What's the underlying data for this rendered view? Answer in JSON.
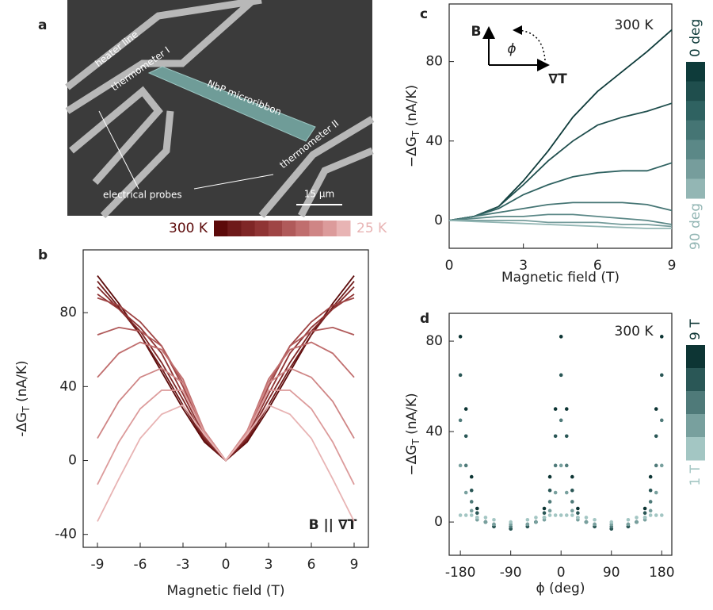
{
  "image_panel": {
    "panel_label": "a",
    "labels": [
      "heater line",
      "thermometer I",
      "NbP microribbon",
      "thermometer II",
      "electrical probes"
    ],
    "scale_bar": "15 μm"
  },
  "chart_data": [
    {
      "type": "line",
      "panel_label": "b",
      "xlabel": "Magnetic field (T)",
      "ylabel": [
        "-ΔG",
        "T",
        " (nA/K)"
      ],
      "annotation": "B || ∇T",
      "colorbar_labels": [
        "300 K",
        "25 K"
      ],
      "xlim": [
        -10,
        10
      ],
      "xticks": [
        -9,
        -6,
        -3,
        0,
        3,
        6,
        9
      ],
      "ylim": [
        -47,
        114
      ],
      "yticks": [
        -40,
        0,
        40,
        80
      ],
      "x": [
        -9,
        -7.5,
        -6,
        -4.5,
        -3,
        -1.5,
        0,
        1.5,
        3,
        4.5,
        6,
        7.5,
        9
      ],
      "series": [
        {
          "color": "#5c0a0a",
          "values": [
            100,
            85,
            68,
            48,
            28,
            10,
            0,
            10,
            28,
            48,
            68,
            85,
            100
          ]
        },
        {
          "color": "#6e1a1a",
          "values": [
            97,
            83,
            68,
            50,
            30,
            11,
            0,
            11,
            30,
            50,
            68,
            83,
            97
          ]
        },
        {
          "color": "#7f2626",
          "values": [
            94,
            82,
            70,
            53,
            33,
            12,
            0,
            12,
            33,
            53,
            70,
            82,
            94
          ]
        },
        {
          "color": "#8f3434",
          "values": [
            90,
            82,
            72,
            58,
            36,
            13,
            0,
            13,
            36,
            58,
            72,
            82,
            90
          ]
        },
        {
          "color": "#9f4545",
          "values": [
            88,
            84,
            75,
            62,
            40,
            14,
            0,
            14,
            40,
            62,
            75,
            84,
            88
          ]
        },
        {
          "color": "#b05a5a",
          "values": [
            68,
            72,
            70,
            62,
            42,
            15,
            0,
            15,
            42,
            62,
            70,
            72,
            68
          ]
        },
        {
          "color": "#c06e6e",
          "values": [
            45,
            58,
            64,
            60,
            44,
            16,
            0,
            16,
            44,
            60,
            64,
            58,
            45
          ]
        },
        {
          "color": "#cf8585",
          "values": [
            12,
            32,
            45,
            50,
            42,
            16,
            0,
            16,
            42,
            50,
            45,
            32,
            12
          ]
        },
        {
          "color": "#dc9b9b",
          "values": [
            -13,
            10,
            28,
            38,
            38,
            15,
            0,
            15,
            38,
            38,
            28,
            10,
            -13
          ]
        },
        {
          "color": "#e8b4b4",
          "values": [
            -33,
            -10,
            12,
            25,
            30,
            14,
            0,
            14,
            30,
            25,
            12,
            -10,
            -33
          ]
        }
      ]
    },
    {
      "type": "line",
      "panel_label": "c",
      "xlabel": "Magnetic field (T)",
      "ylabel": [
        "−ΔG",
        "T",
        " (nA/K)"
      ],
      "annotation": "300 K",
      "diagram_labels": [
        "B",
        "ϕ",
        "∇T"
      ],
      "colorbar_labels": [
        "0 deg",
        "90 deg"
      ],
      "xlim": [
        0,
        9
      ],
      "xticks": [
        0,
        3,
        6,
        9
      ],
      "ylim": [
        -14,
        109
      ],
      "yticks": [
        0,
        40,
        80
      ],
      "x": [
        0,
        1,
        2,
        3,
        4,
        5,
        6,
        7,
        8,
        9
      ],
      "series": [
        {
          "color": "#0e3b3a",
          "values": [
            0,
            2,
            7,
            20,
            35,
            52,
            65,
            75,
            85,
            96
          ]
        },
        {
          "color": "#1f4e4d",
          "values": [
            0,
            2,
            7,
            18,
            30,
            40,
            48,
            52,
            55,
            59
          ]
        },
        {
          "color": "#2f6261",
          "values": [
            0,
            2,
            6,
            13,
            18,
            22,
            24,
            25,
            25,
            29
          ]
        },
        {
          "color": "#457574",
          "values": [
            0,
            2,
            4,
            6,
            8,
            9,
            9,
            9,
            8,
            5
          ]
        },
        {
          "color": "#5b8887",
          "values": [
            0,
            1,
            2,
            2,
            3,
            3,
            2,
            1,
            0,
            -2
          ]
        },
        {
          "color": "#769d9c",
          "values": [
            0,
            0,
            0,
            0,
            -1,
            -1,
            -1,
            -2,
            -2,
            -3
          ]
        },
        {
          "color": "#93b6b4",
          "values": [
            0,
            -0.5,
            -1,
            -1.5,
            -2,
            -2.5,
            -3,
            -3.5,
            -4,
            -4
          ]
        }
      ]
    },
    {
      "type": "scatter",
      "panel_label": "d",
      "xlabel": "ϕ (deg)",
      "ylabel": [
        "−ΔG",
        "T",
        " (nA/K)"
      ],
      "annotation": "300 K",
      "colorbar_labels": [
        "9 T",
        "1 T"
      ],
      "xlim": [
        -200,
        198
      ],
      "xticks": [
        -180,
        -90,
        0,
        90,
        180
      ],
      "ylim": [
        -14.7,
        92.3
      ],
      "yticks": [
        0,
        40,
        80
      ],
      "x": [
        -180,
        -170,
        -160,
        -150,
        -135,
        -120,
        -90,
        -60,
        -45,
        -30,
        -20,
        -10,
        0,
        10,
        20,
        30,
        45,
        60,
        90,
        120,
        135,
        150,
        160,
        170,
        180
      ],
      "series": [
        {
          "color": "#0d3534",
          "values": [
            82,
            50,
            20,
            6,
            0,
            -2,
            -3,
            -2,
            0,
            6,
            20,
            50,
            82,
            50,
            20,
            6,
            0,
            -2,
            -3,
            -2,
            0,
            6,
            20,
            50,
            82
          ]
        },
        {
          "color": "#2a5756",
          "values": [
            65,
            38,
            14,
            4,
            0,
            -2,
            -3,
            -2,
            0,
            4,
            14,
            38,
            65,
            38,
            14,
            4,
            0,
            -2,
            -3,
            -2,
            0,
            4,
            14,
            38,
            65
          ]
        },
        {
          "color": "#4f7a79",
          "values": [
            45,
            25,
            9,
            2,
            0,
            -1,
            -2,
            -1,
            0,
            2,
            9,
            25,
            45,
            25,
            9,
            2,
            0,
            -1,
            -2,
            -1,
            0,
            2,
            9,
            25,
            45
          ]
        },
        {
          "color": "#78a09e",
          "values": [
            25,
            13,
            5,
            1,
            0,
            -1,
            -1,
            -1,
            0,
            1,
            5,
            13,
            25,
            13,
            5,
            1,
            0,
            -1,
            -1,
            -1,
            0,
            1,
            5,
            13,
            25
          ]
        },
        {
          "color": "#a3c6c3",
          "values": [
            3,
            3,
            3,
            2,
            2,
            1,
            0,
            1,
            2,
            2,
            3,
            3,
            3,
            3,
            3,
            2,
            2,
            1,
            0,
            1,
            2,
            2,
            3,
            3,
            3
          ]
        }
      ]
    }
  ]
}
